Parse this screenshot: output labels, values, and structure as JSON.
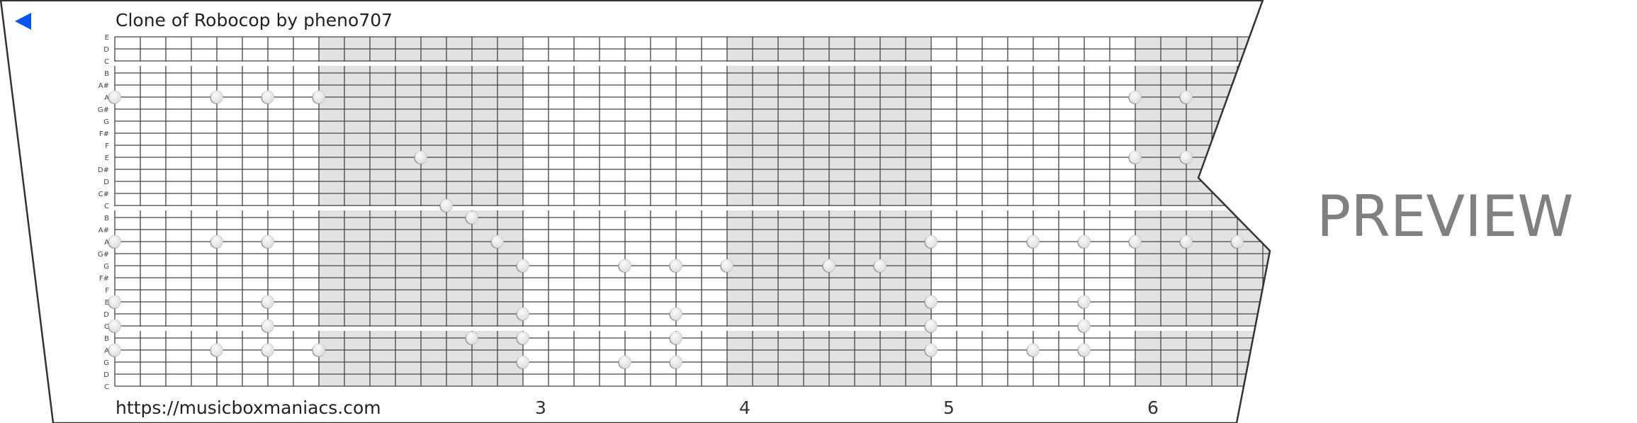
{
  "title": "Clone of Robocop by pheno707",
  "back_icon": "triangle-left-icon",
  "url": "https://musicboxmaniacs.com",
  "watermark": "PREVIEW",
  "colors": {
    "accent": "#0a55f0",
    "shaded_measure": "#e2e2e2",
    "grid_line": "#444444",
    "watermark": "#808080"
  },
  "rows": [
    "E",
    "D",
    "C",
    "B",
    "A#",
    "A",
    "G#",
    "G",
    "F#",
    "F",
    "E",
    "D#",
    "D",
    "C#",
    "C",
    "B",
    "A#",
    "A",
    "G#",
    "G",
    "F#",
    "F",
    "E",
    "D",
    "C",
    "B",
    "A",
    "G",
    "D",
    "C"
  ],
  "section_breaks_after_row": [
    2,
    14,
    24
  ],
  "beats_per_measure": 8,
  "shaded_measures": [
    2,
    4,
    6
  ],
  "measure_numbers": [
    {
      "label": "3",
      "beat": 16
    },
    {
      "label": "4",
      "beat": 24
    },
    {
      "label": "5",
      "beat": 32
    },
    {
      "label": "6",
      "beat": 40
    }
  ],
  "notes": [
    {
      "row": 5,
      "beat": 0
    },
    {
      "row": 5,
      "beat": 4
    },
    {
      "row": 5,
      "beat": 6
    },
    {
      "row": 5,
      "beat": 8
    },
    {
      "row": 5,
      "beat": 40
    },
    {
      "row": 5,
      "beat": 42
    },
    {
      "row": 10,
      "beat": 12
    },
    {
      "row": 10,
      "beat": 40
    },
    {
      "row": 10,
      "beat": 42
    },
    {
      "row": 14,
      "beat": 13
    },
    {
      "row": 15,
      "beat": 14
    },
    {
      "row": 17,
      "beat": 0
    },
    {
      "row": 17,
      "beat": 4
    },
    {
      "row": 17,
      "beat": 6
    },
    {
      "row": 17,
      "beat": 15
    },
    {
      "row": 17,
      "beat": 32
    },
    {
      "row": 17,
      "beat": 36
    },
    {
      "row": 17,
      "beat": 38
    },
    {
      "row": 17,
      "beat": 40
    },
    {
      "row": 17,
      "beat": 42
    },
    {
      "row": 17,
      "beat": 44
    },
    {
      "row": 19,
      "beat": 16
    },
    {
      "row": 19,
      "beat": 20
    },
    {
      "row": 19,
      "beat": 22
    },
    {
      "row": 19,
      "beat": 24
    },
    {
      "row": 19,
      "beat": 28
    },
    {
      "row": 19,
      "beat": 30
    },
    {
      "row": 22,
      "beat": 0
    },
    {
      "row": 22,
      "beat": 6
    },
    {
      "row": 22,
      "beat": 32
    },
    {
      "row": 22,
      "beat": 38
    },
    {
      "row": 23,
      "beat": 16
    },
    {
      "row": 23,
      "beat": 22
    },
    {
      "row": 24,
      "beat": 0
    },
    {
      "row": 24,
      "beat": 6
    },
    {
      "row": 24,
      "beat": 32
    },
    {
      "row": 24,
      "beat": 38
    },
    {
      "row": 25,
      "beat": 14
    },
    {
      "row": 25,
      "beat": 16
    },
    {
      "row": 25,
      "beat": 22
    },
    {
      "row": 26,
      "beat": 0
    },
    {
      "row": 26,
      "beat": 4
    },
    {
      "row": 26,
      "beat": 6
    },
    {
      "row": 26,
      "beat": 8
    },
    {
      "row": 26,
      "beat": 32
    },
    {
      "row": 26,
      "beat": 36
    },
    {
      "row": 26,
      "beat": 38
    },
    {
      "row": 27,
      "beat": 16
    },
    {
      "row": 27,
      "beat": 20
    },
    {
      "row": 27,
      "beat": 22
    }
  ]
}
